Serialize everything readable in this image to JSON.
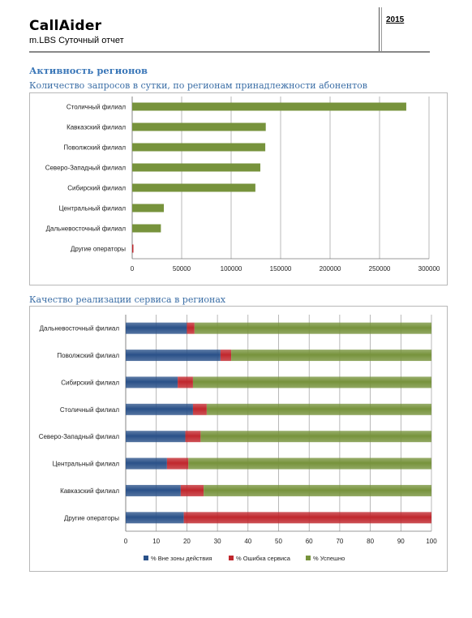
{
  "header": {
    "brand": "CallAider",
    "subtitle": "m.LBS Суточный отчет",
    "year": "2015"
  },
  "section_title": "Активность регионов",
  "chart1_title": "Количество запросов в сутки, по регионам принадлежности абонентов",
  "chart2_title": "Качество реализации сервиса в регионах",
  "colors": {
    "green": "#77933c",
    "red": "#c0272d",
    "blue": "#2a5189",
    "heading": "#3b77b8"
  },
  "chart_data": [
    {
      "type": "bar",
      "orientation": "horizontal",
      "categories": [
        "Столичный филиал",
        "Кавказский филиал",
        "Поволжский филиал",
        "Северо-Западный филиал",
        "Сибирский филиал",
        "Центральный филиал",
        "Дальневосточный филиал",
        "Другие операторы"
      ],
      "values": [
        277000,
        135000,
        134500,
        129500,
        124500,
        32000,
        29000,
        1200
      ],
      "value_colors": [
        "#77933c",
        "#77933c",
        "#77933c",
        "#77933c",
        "#77933c",
        "#77933c",
        "#77933c",
        "#c0272d"
      ],
      "xlim": [
        0,
        300000
      ],
      "xticks": [
        "0",
        "50000",
        "100000",
        "150000",
        "200000",
        "250000",
        "300000"
      ],
      "grid": "vertical",
      "legend": "none"
    },
    {
      "type": "bar",
      "orientation": "horizontal",
      "stacked": true,
      "categories": [
        "Дальневосточный филиал",
        "Поволжский филиал",
        "Сибирский филиал",
        "Столичный филиал",
        "Северо-Западный филиал",
        "Центральный филиал",
        "Кавказский филиал",
        "Другие операторы"
      ],
      "series": [
        {
          "name": "% Вне зоны действия",
          "color": "#2a5189",
          "values": [
            20,
            31,
            17,
            22,
            19.5,
            13.5,
            18,
            19
          ]
        },
        {
          "name": "% Ошибка сервиса",
          "color": "#c0272d",
          "values": [
            2.5,
            3.5,
            5,
            4.5,
            5,
            7,
            7.5,
            81
          ]
        },
        {
          "name": "% Успешно",
          "color": "#77933c",
          "values": [
            77.5,
            65.5,
            78,
            73.5,
            75.5,
            79.5,
            74.5,
            0
          ]
        }
      ],
      "xlim": [
        0,
        100
      ],
      "xticks": [
        "0",
        "10",
        "20",
        "30",
        "40",
        "50",
        "60",
        "70",
        "80",
        "90",
        "100"
      ],
      "grid": "vertical",
      "legend": "bottom"
    }
  ]
}
